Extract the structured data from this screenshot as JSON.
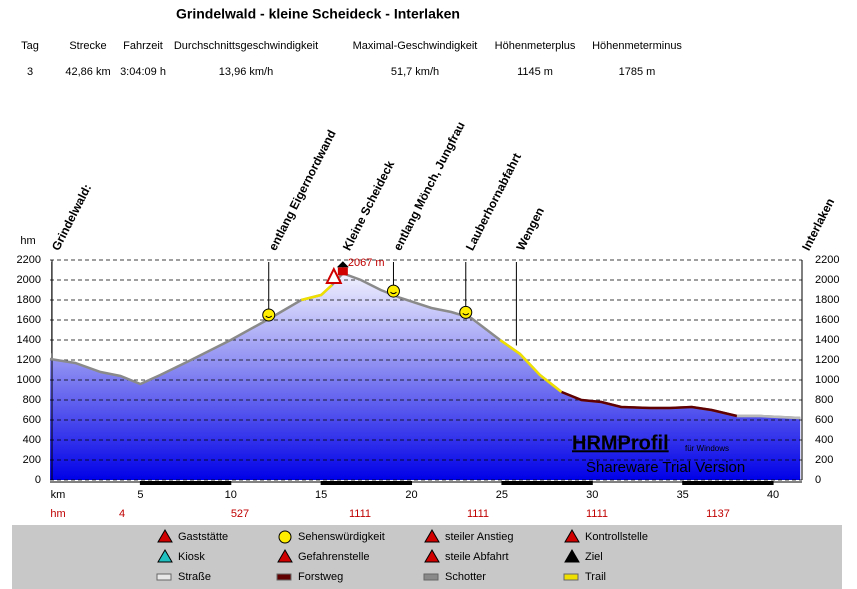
{
  "chart_data": {
    "type": "area",
    "title": "Grindelwald - kleine Scheideck - Interlaken",
    "stats": {
      "headers": [
        "Tag",
        "Strecke",
        "Fahrzeit",
        "Durchschnittsgeschwindigkeit",
        "Maximal-Geschwindigkeit",
        "Höhenmeterplus",
        "Höhenmeterminus"
      ],
      "values": [
        "3",
        "42,86 km",
        "3:04:09 h",
        "13,96 km/h",
        "51,7 km/h",
        "1145 m",
        "1785 m"
      ]
    },
    "x_label": "km",
    "y_label": "hm",
    "x": [
      0,
      1.4,
      2.8,
      3.9,
      5,
      6.1,
      7.8,
      10,
      12.2,
      13.9,
      15,
      15.6,
      16.2,
      17.2,
      18.3,
      19.4,
      21.1,
      22.2,
      23.3,
      24.9,
      26,
      27.1,
      28.3,
      29.4,
      30.5,
      31.6,
      33.2,
      34.3,
      35.5,
      36.6,
      38,
      39.3,
      41.5
    ],
    "values": [
      1210,
      1170,
      1080,
      1040,
      960,
      1050,
      1200,
      1400,
      1620,
      1800,
      1850,
      1950,
      2067,
      2000,
      1900,
      1820,
      1720,
      1680,
      1620,
      1400,
      1260,
      1050,
      880,
      800,
      780,
      730,
      720,
      720,
      730,
      700,
      640,
      640,
      620
    ],
    "peak_label": "2067 m",
    "xlim": [
      0,
      41.6
    ],
    "ylim": [
      0,
      2200
    ],
    "xticks": [
      5,
      10,
      15,
      20,
      25,
      30,
      35,
      40
    ],
    "yticks": [
      0,
      200,
      400,
      600,
      800,
      1000,
      1200,
      1400,
      1600,
      1800,
      2000,
      2200
    ],
    "grid": true,
    "waypoints": [
      {
        "label": "Grindelwald:",
        "x": 0.1
      },
      {
        "label": "entlang Eigernordwand",
        "x": 12.1
      },
      {
        "label": "Kleine Scheideck",
        "x": 16.2
      },
      {
        "label": "entlang Mönch, Jungfrau",
        "x": 19
      },
      {
        "label": "Lauberhornabfahrt",
        "x": 23
      },
      {
        "label": "Wengen",
        "x": 25.8
      },
      {
        "label": "Interlaken",
        "x": 41.6
      }
    ],
    "hm_label": "hm",
    "hm_row": [
      4,
      527,
      1111,
      1111,
      1111,
      1137
    ],
    "watermark": [
      "HRMProfil",
      "für Windows",
      "Shareware Trial  Version"
    ],
    "legend": [
      "Gaststätte",
      "Kiosk",
      "Straße",
      "Sehenswürdigkeit",
      "Gefahrenstelle",
      "Forstweg",
      "steiler Anstieg",
      "steile Abfahrt",
      "Schotter",
      "Kontrollstelle",
      "Ziel",
      "Trail"
    ]
  }
}
